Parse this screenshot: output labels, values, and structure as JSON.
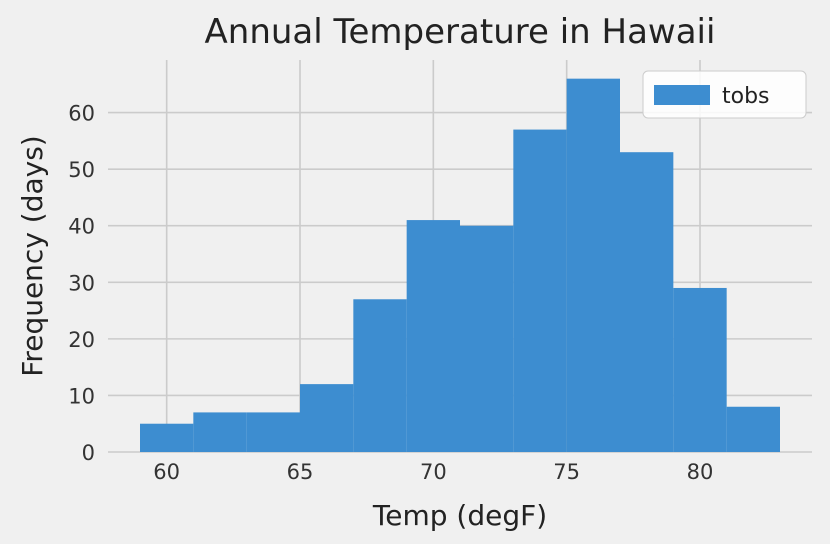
{
  "chart_data": {
    "type": "bar",
    "title": "Annual Temperature in Hawaii",
    "xlabel": "Temp (degF)",
    "ylabel": "Frequency (days)",
    "xlim": [
      57.8,
      84.2
    ],
    "ylim": [
      0,
      69.3
    ],
    "xticks": [
      60,
      65,
      70,
      75,
      80
    ],
    "yticks": [
      0,
      10,
      20,
      30,
      40,
      50,
      60
    ],
    "grid": true,
    "legend_position": "top-right",
    "series": [
      {
        "name": "tobs",
        "color": "#3d8dd0",
        "bin_edges": [
          59,
          61,
          63,
          65,
          67,
          69,
          71,
          73,
          75,
          77,
          79,
          81,
          83
        ],
        "values": [
          5,
          7,
          7,
          12,
          27,
          41,
          40,
          57,
          66,
          53,
          29,
          8
        ]
      }
    ]
  }
}
